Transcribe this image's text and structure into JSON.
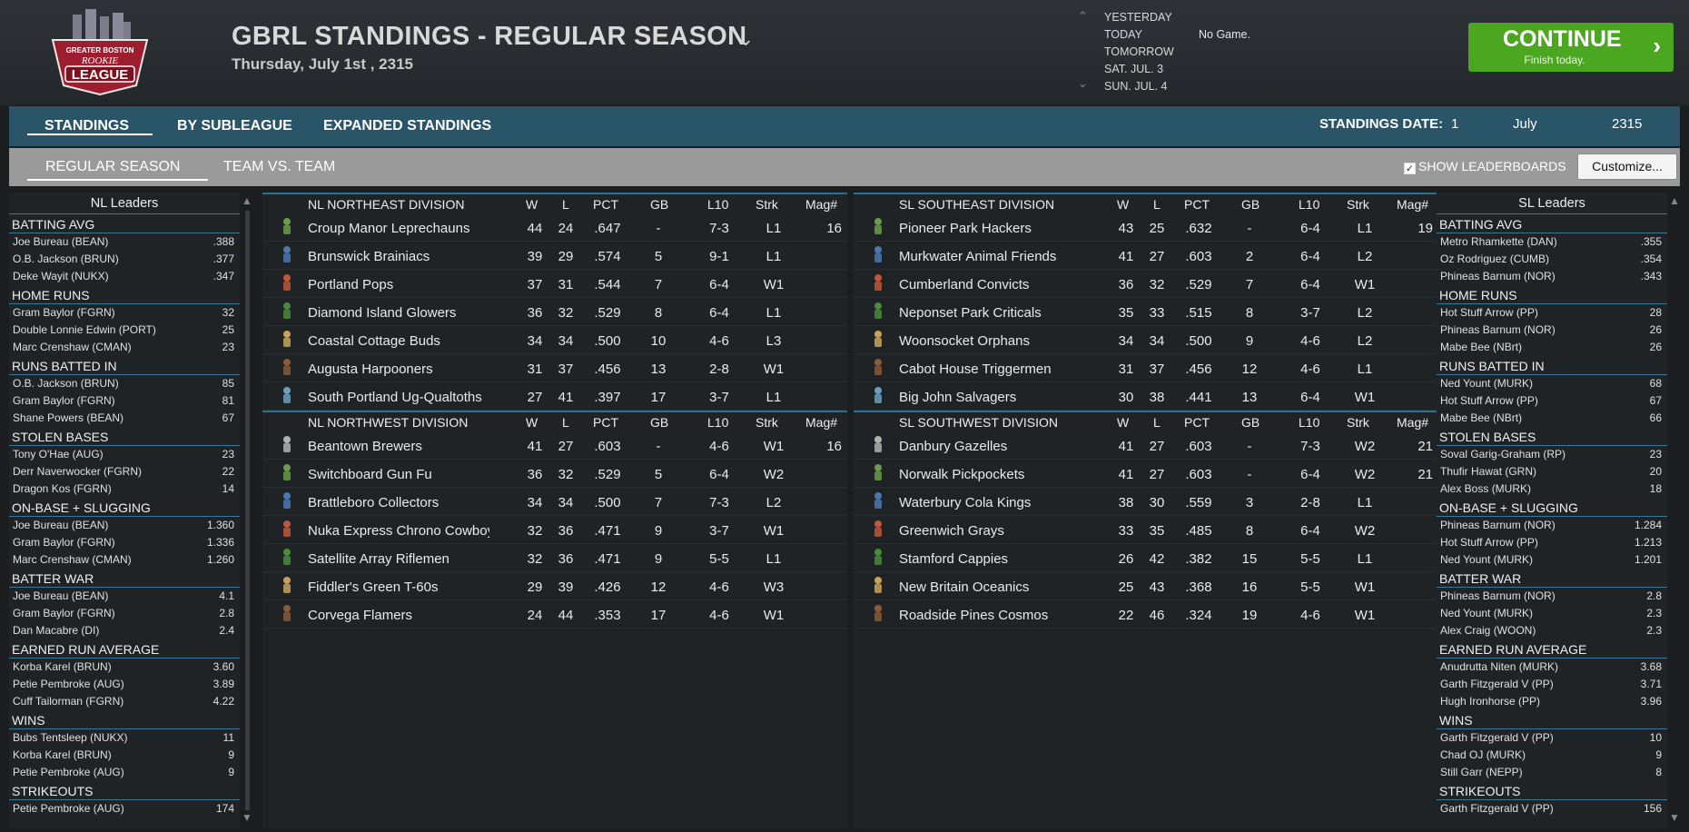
{
  "header": {
    "title": "GBRL STANDINGS - REGULAR SEASON",
    "date": "Thursday, July 1st , 2315",
    "logo_text": [
      "GREATER BOSTON",
      "ROOKIE",
      "LEAGUE"
    ],
    "schedule": {
      "days": [
        "YESTERDAY",
        "TODAY",
        "TOMORROW",
        "SAT. JUL. 3",
        "SUN. JUL. 4"
      ],
      "game": "No Game."
    },
    "continue": {
      "label": "CONTINUE",
      "sub": "Finish today."
    }
  },
  "tabs1": {
    "items": [
      "STANDINGS",
      "BY SUBLEAGUE",
      "EXPANDED STANDINGS"
    ],
    "date_label": "STANDINGS DATE:",
    "date_day": "1",
    "date_month": "July",
    "date_year": "2315"
  },
  "tabs2": {
    "items": [
      "REGULAR SEASON",
      "TEAM VS. TEAM"
    ],
    "show_leaderboards": "SHOW LEADERBOARDS",
    "customize": "Customize..."
  },
  "standings_cols": [
    "W",
    "L",
    "PCT",
    "GB",
    "L10",
    "Strk",
    "Mag#"
  ],
  "nl_leaders": {
    "title": "NL Leaders",
    "sections": [
      {
        "name": "BATTING AVG",
        "rows": [
          [
            "Joe Bureau (BEAN)",
            ".388"
          ],
          [
            "O.B. Jackson (BRUN)",
            ".377"
          ],
          [
            "Deke Wayit (NUKX)",
            ".347"
          ]
        ]
      },
      {
        "name": "HOME RUNS",
        "rows": [
          [
            "Gram Baylor (FGRN)",
            "32"
          ],
          [
            "Double Lonnie Edwin (PORT)",
            "25"
          ],
          [
            "Marc Crenshaw (CMAN)",
            "23"
          ]
        ]
      },
      {
        "name": "RUNS BATTED IN",
        "rows": [
          [
            "O.B. Jackson (BRUN)",
            "85"
          ],
          [
            "Gram Baylor (FGRN)",
            "81"
          ],
          [
            "Shane Powers (BEAN)",
            "67"
          ]
        ]
      },
      {
        "name": "STOLEN BASES",
        "rows": [
          [
            "Tony O'Hae (AUG)",
            "23"
          ],
          [
            "Derr Naverwocker (FGRN)",
            "22"
          ],
          [
            "Dragon Kos (FGRN)",
            "14"
          ]
        ]
      },
      {
        "name": "ON-BASE + SLUGGING",
        "rows": [
          [
            "Joe Bureau (BEAN)",
            "1.360"
          ],
          [
            "Gram Baylor (FGRN)",
            "1.336"
          ],
          [
            "Marc Crenshaw (CMAN)",
            "1.260"
          ]
        ]
      },
      {
        "name": "BATTER WAR",
        "rows": [
          [
            "Joe Bureau (BEAN)",
            "4.1"
          ],
          [
            "Gram Baylor (FGRN)",
            "2.8"
          ],
          [
            "Dan Macabre (DI)",
            "2.4"
          ]
        ]
      },
      {
        "name": "EARNED RUN AVERAGE",
        "rows": [
          [
            "Korba Karel (BRUN)",
            "3.60"
          ],
          [
            "Petie Pembroke (AUG)",
            "3.89"
          ],
          [
            "Cuff Tailorman (FGRN)",
            "4.22"
          ]
        ]
      },
      {
        "name": "WINS",
        "rows": [
          [
            "Bubs Tentsleep (NUKX)",
            "11"
          ],
          [
            "Korba Karel (BRUN)",
            "9"
          ],
          [
            "Petie Pembroke (AUG)",
            "9"
          ]
        ]
      },
      {
        "name": "STRIKEOUTS",
        "rows": [
          [
            "Petie Pembroke (AUG)",
            "174"
          ]
        ]
      }
    ]
  },
  "sl_leaders": {
    "title": "SL Leaders",
    "sections": [
      {
        "name": "BATTING AVG",
        "rows": [
          [
            "Metro Rhamkette (DAN)",
            ".355"
          ],
          [
            "Oz Rodriguez (CUMB)",
            ".354"
          ],
          [
            "Phineas Barnum (NOR)",
            ".343"
          ]
        ]
      },
      {
        "name": "HOME RUNS",
        "rows": [
          [
            "Hot Stuff Arrow (PP)",
            "28"
          ],
          [
            "Phineas Barnum (NOR)",
            "26"
          ],
          [
            "Mabe Bee (NBrt)",
            "26"
          ]
        ]
      },
      {
        "name": "RUNS BATTED IN",
        "rows": [
          [
            "Ned Yount (MURK)",
            "68"
          ],
          [
            "Hot Stuff Arrow (PP)",
            "67"
          ],
          [
            "Mabe Bee (NBrt)",
            "66"
          ]
        ]
      },
      {
        "name": "STOLEN BASES",
        "rows": [
          [
            "Soval Garig-Graham (RP)",
            "23"
          ],
          [
            "Thufir Hawat (GRN)",
            "20"
          ],
          [
            "Alex Boss (MURK)",
            "18"
          ]
        ]
      },
      {
        "name": "ON-BASE + SLUGGING",
        "rows": [
          [
            "Phineas Barnum (NOR)",
            "1.284"
          ],
          [
            "Hot Stuff Arrow (PP)",
            "1.213"
          ],
          [
            "Ned Yount (MURK)",
            "1.201"
          ]
        ]
      },
      {
        "name": "BATTER WAR",
        "rows": [
          [
            "Phineas Barnum (NOR)",
            "2.8"
          ],
          [
            "Ned Yount (MURK)",
            "2.3"
          ],
          [
            "Alex Craig (WOON)",
            "2.3"
          ]
        ]
      },
      {
        "name": "EARNED RUN AVERAGE",
        "rows": [
          [
            "Anudrutta Niten (MURK)",
            "3.68"
          ],
          [
            "Garth Fitzgerald V (PP)",
            "3.71"
          ],
          [
            "Hugh Ironhorse (PP)",
            "3.96"
          ]
        ]
      },
      {
        "name": "WINS",
        "rows": [
          [
            "Garth Fitzgerald V (PP)",
            "10"
          ],
          [
            "Chad OJ (MURK)",
            "9"
          ],
          [
            "Still Garr (NEPP)",
            "8"
          ]
        ]
      },
      {
        "name": "STRIKEOUTS",
        "rows": [
          [
            "Garth Fitzgerald V (PP)",
            "156"
          ]
        ]
      }
    ]
  },
  "nl_divisions": [
    {
      "name": "NL NORTHEAST DIVISION",
      "teams": [
        [
          "Croup Manor Leprechauns",
          "44",
          "24",
          ".647",
          "-",
          "7-3",
          "L1",
          "16"
        ],
        [
          "Brunswick Brainiacs",
          "39",
          "29",
          ".574",
          "5",
          "9-1",
          "L1",
          ""
        ],
        [
          "Portland Pops",
          "37",
          "31",
          ".544",
          "7",
          "6-4",
          "W1",
          ""
        ],
        [
          "Diamond Island Glowers",
          "36",
          "32",
          ".529",
          "8",
          "6-4",
          "L1",
          ""
        ],
        [
          "Coastal Cottage Buds",
          "34",
          "34",
          ".500",
          "10",
          "4-6",
          "L3",
          ""
        ],
        [
          "Augusta Harpooners",
          "31",
          "37",
          ".456",
          "13",
          "2-8",
          "W1",
          ""
        ],
        [
          "South Portland Ug-Qualtoths",
          "27",
          "41",
          ".397",
          "17",
          "3-7",
          "L1",
          ""
        ]
      ]
    },
    {
      "name": "NL NORTHWEST DIVISION",
      "teams": [
        [
          "Beantown Brewers",
          "41",
          "27",
          ".603",
          "-",
          "4-6",
          "W1",
          "16"
        ],
        [
          "Switchboard Gun Fu",
          "36",
          "32",
          ".529",
          "5",
          "6-4",
          "W2",
          ""
        ],
        [
          "Brattleboro Collectors",
          "34",
          "34",
          ".500",
          "7",
          "7-3",
          "L2",
          ""
        ],
        [
          "Nuka Express Chrono Cowboys",
          "32",
          "36",
          ".471",
          "9",
          "3-7",
          "W1",
          ""
        ],
        [
          "Satellite Array Riflemen",
          "32",
          "36",
          ".471",
          "9",
          "5-5",
          "L1",
          ""
        ],
        [
          "Fiddler's Green T-60s",
          "29",
          "39",
          ".426",
          "12",
          "4-6",
          "W3",
          ""
        ],
        [
          "Corvega Flamers",
          "24",
          "44",
          ".353",
          "17",
          "4-6",
          "W1",
          ""
        ]
      ]
    }
  ],
  "sl_divisions": [
    {
      "name": "SL SOUTHEAST DIVISION",
      "teams": [
        [
          "Pioneer Park Hackers",
          "43",
          "25",
          ".632",
          "-",
          "6-4",
          "L1",
          "19"
        ],
        [
          "Murkwater Animal Friends",
          "41",
          "27",
          ".603",
          "2",
          "6-4",
          "L2",
          ""
        ],
        [
          "Cumberland Convicts",
          "36",
          "32",
          ".529",
          "7",
          "6-4",
          "W1",
          ""
        ],
        [
          "Neponset Park Criticals",
          "35",
          "33",
          ".515",
          "8",
          "3-7",
          "L2",
          ""
        ],
        [
          "Woonsocket Orphans",
          "34",
          "34",
          ".500",
          "9",
          "4-6",
          "L2",
          ""
        ],
        [
          "Cabot House Triggermen",
          "31",
          "37",
          ".456",
          "12",
          "4-6",
          "L1",
          ""
        ],
        [
          "Big John Salvagers",
          "30",
          "38",
          ".441",
          "13",
          "6-4",
          "W1",
          ""
        ]
      ]
    },
    {
      "name": "SL SOUTHWEST DIVISION",
      "teams": [
        [
          "Danbury Gazelles",
          "41",
          "27",
          ".603",
          "-",
          "7-3",
          "W2",
          "21"
        ],
        [
          "Norwalk Pickpockets",
          "41",
          "27",
          ".603",
          "-",
          "6-4",
          "W2",
          "21"
        ],
        [
          "Waterbury Cola Kings",
          "38",
          "30",
          ".559",
          "3",
          "2-8",
          "L1",
          ""
        ],
        [
          "Greenwich Grays",
          "33",
          "35",
          ".485",
          "8",
          "6-4",
          "W2",
          ""
        ],
        [
          "Stamford Cappies",
          "26",
          "42",
          ".382",
          "15",
          "5-5",
          "L1",
          ""
        ],
        [
          "New Britain Oceanics",
          "25",
          "43",
          ".368",
          "16",
          "5-5",
          "W1",
          ""
        ],
        [
          "Roadside Pines Cosmos",
          "22",
          "46",
          ".324",
          "19",
          "4-6",
          "W1",
          ""
        ]
      ]
    }
  ],
  "colors": {
    "accent": "#4aa71f",
    "tabbar": "#2a5569",
    "divider": "#3c7896"
  }
}
